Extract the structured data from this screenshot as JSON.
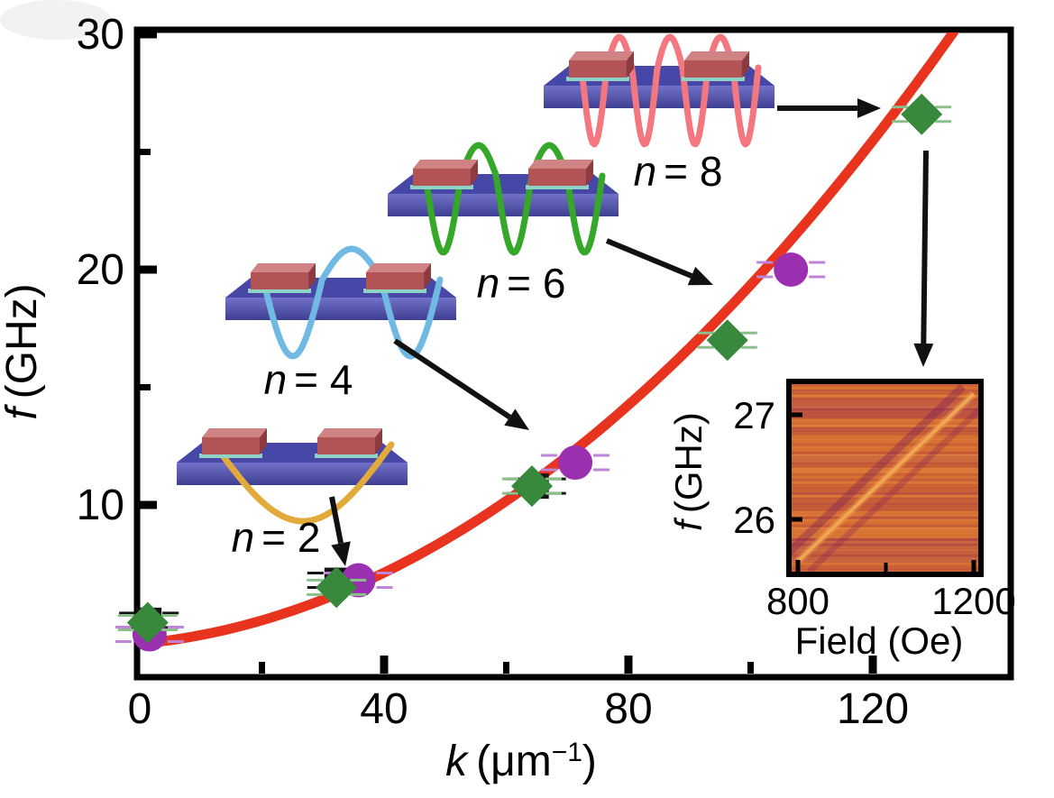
{
  "chart_data": {
    "type": "scatter",
    "title": "",
    "xlabel": {
      "var": "k",
      "unit_open": "(μm",
      "sup": "−1",
      "close": ")"
    },
    "ylabel": {
      "var": "f",
      "units": "(GHz)"
    },
    "x_ticks": [
      0,
      40,
      80,
      120
    ],
    "x_minor_ticks": [
      20,
      60,
      100
    ],
    "x_range": [
      0,
      142
    ],
    "y_ticks": [
      30,
      20,
      10
    ],
    "y_minor_ticks": [
      5,
      15,
      25
    ],
    "y_range": [
      2.6,
      30.2
    ],
    "grid": false,
    "legend": false,
    "series": [
      {
        "name": "green-diamonds",
        "marker": "diamond",
        "color": "#38893b",
        "error_cap_color": "#8bc08b",
        "points": [
          {
            "k": 1.3,
            "f": 5.0
          },
          {
            "k": 32.2,
            "f": 6.5
          },
          {
            "k": 64.2,
            "f": 10.8
          },
          {
            "k": 96.2,
            "f": 17.0
          },
          {
            "k": 128.0,
            "f": 26.6
          }
        ]
      },
      {
        "name": "purple-circles",
        "marker": "circle",
        "color": "#9a2fb0",
        "error_cap_color": "#c084d6",
        "points": [
          {
            "k": 1.6,
            "f": 4.5
          },
          {
            "k": 35.8,
            "f": 6.8
          },
          {
            "k": 71.3,
            "f": 11.8
          },
          {
            "k": 106.6,
            "f": 20.0
          }
        ]
      },
      {
        "name": "black-squares",
        "marker": "square",
        "color": "#151515",
        "error_cap_color": "#151515",
        "points": [
          {
            "k": 1.5,
            "f": 5.1
          },
          {
            "k": 32.3,
            "f": 6.8
          },
          {
            "k": 64.9,
            "f": 10.8
          }
        ]
      }
    ],
    "fit_curve": {
      "color": "#e8331f",
      "f0": 4.1,
      "a": 0.0242,
      "b": 0.001283,
      "k_max": 134
    },
    "mode_annotations": [
      {
        "n": 2,
        "var": "n",
        "eq": "= 2",
        "wave_color": "#e2a93b"
      },
      {
        "n": 4,
        "var": "n",
        "eq": "= 4",
        "wave_color": "#6fb9e2"
      },
      {
        "n": 6,
        "var": "n",
        "eq": "= 6",
        "wave_color": "#35a829"
      },
      {
        "n": 8,
        "var": "n",
        "eq": "= 8",
        "wave_color": "#f4767e"
      }
    ]
  },
  "inset": {
    "type": "heatmap",
    "xlabel": "Field (Oe)",
    "ylabel": {
      "var": "f",
      "units": "(GHz)"
    },
    "x_ticks": [
      800,
      1200
    ],
    "x_minor_ticks": [
      1000
    ],
    "y_ticks": [
      26,
      27
    ],
    "x_range": [
      780,
      1216
    ],
    "y_range": [
      25.5,
      27.3
    ],
    "colormap": {
      "base": "#d4692f",
      "stripe": "#8e2464",
      "bright": "#f2a852",
      "dark_line": "#7c1e57"
    },
    "diagonal_feature": {
      "field": [
        800,
        1200
      ],
      "f": [
        25.6,
        27.2
      ]
    }
  },
  "device": {
    "slab_top": "#4747a7",
    "slab_front_light": "#7272c8",
    "slab_front_dark": "#3e3e92",
    "bar_front": "#b25356",
    "bar_top": "#d08384",
    "bar_side": "#8c3c40",
    "underlayer": "#8fd2c6"
  },
  "colors": {
    "frame": "#000000",
    "arrow": "#111111",
    "background": "#ffffff"
  }
}
